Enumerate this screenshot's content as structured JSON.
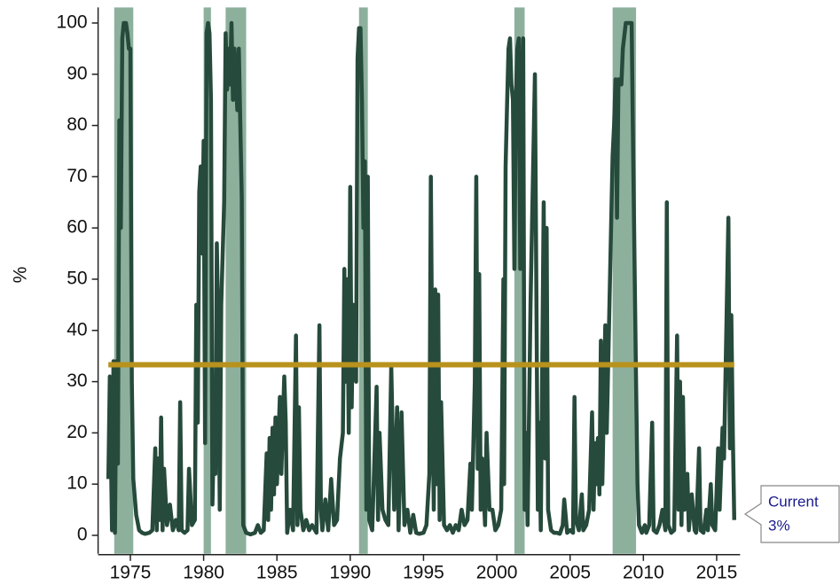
{
  "chart_data": {
    "type": "line",
    "y_label": "%",
    "x": [
      1973.5,
      1973.6,
      1973.75,
      1973.85,
      1973.95,
      1974.05,
      1974.15,
      1974.25,
      1974.35,
      1974.45,
      1974.55,
      1974.7,
      1974.8,
      1974.9,
      1975.0,
      1975.1,
      1975.2,
      1975.4,
      1975.6,
      1975.8,
      1976.0,
      1976.3,
      1976.5,
      1976.7,
      1976.8,
      1976.9,
      1977.0,
      1977.1,
      1977.2,
      1977.3,
      1977.5,
      1977.7,
      1977.9,
      1978.1,
      1978.3,
      1978.4,
      1978.5,
      1978.7,
      1978.9,
      1979.0,
      1979.2,
      1979.4,
      1979.5,
      1979.6,
      1979.7,
      1979.8,
      1979.9,
      1980.0,
      1980.1,
      1980.2,
      1980.3,
      1980.4,
      1980.5,
      1980.6,
      1980.7,
      1980.8,
      1980.9,
      1981.0,
      1981.1,
      1981.2,
      1981.4,
      1981.5,
      1981.6,
      1981.7,
      1981.8,
      1981.9,
      1982.0,
      1982.1,
      1982.3,
      1982.4,
      1982.6,
      1982.7,
      1982.9,
      1983.2,
      1983.5,
      1983.7,
      1983.9,
      1984.1,
      1984.3,
      1984.4,
      1984.5,
      1984.6,
      1984.7,
      1984.8,
      1984.9,
      1985.0,
      1985.2,
      1985.3,
      1985.5,
      1985.6,
      1985.7,
      1985.9,
      1986.1,
      1986.3,
      1986.4,
      1986.5,
      1986.6,
      1986.8,
      1987.0,
      1987.2,
      1987.4,
      1987.7,
      1987.9,
      1988.0,
      1988.1,
      1988.3,
      1988.5,
      1988.7,
      1988.9,
      1989.1,
      1989.3,
      1989.5,
      1989.6,
      1989.7,
      1989.8,
      1989.9,
      1990.0,
      1990.1,
      1990.2,
      1990.4,
      1990.5,
      1990.6,
      1990.7,
      1990.8,
      1990.9,
      1991.0,
      1991.1,
      1991.2,
      1991.3,
      1991.5,
      1991.6,
      1991.8,
      1991.9,
      1992.0,
      1992.2,
      1992.4,
      1992.6,
      1992.8,
      1993.0,
      1993.2,
      1993.3,
      1993.5,
      1993.7,
      1993.9,
      1994.1,
      1994.3,
      1994.5,
      1994.7,
      1995.0,
      1995.2,
      1995.4,
      1995.5,
      1995.6,
      1995.7,
      1995.8,
      1995.9,
      1996.0,
      1996.1,
      1996.2,
      1996.4,
      1996.6,
      1996.8,
      1997.0,
      1997.2,
      1997.4,
      1997.6,
      1997.8,
      1998.0,
      1998.2,
      1998.3,
      1998.5,
      1998.6,
      1998.7,
      1998.8,
      1998.9,
      1999.0,
      1999.2,
      1999.3,
      1999.5,
      1999.7,
      1999.9,
      2000.1,
      2000.3,
      2000.45,
      2000.5,
      2000.6,
      2000.7,
      2000.8,
      2000.9,
      2001.0,
      2001.1,
      2001.2,
      2001.3,
      2001.4,
      2001.5,
      2001.6,
      2001.7,
      2001.8,
      2001.9,
      2002.0,
      2002.1,
      2002.3,
      2002.6,
      2002.8,
      2002.9,
      2003.0,
      2003.2,
      2003.3,
      2003.4,
      2003.5,
      2003.7,
      2003.9,
      2004.1,
      2004.3,
      2004.5,
      2004.6,
      2004.8,
      2005.0,
      2005.2,
      2005.3,
      2005.4,
      2005.6,
      2005.8,
      2005.9,
      2006.1,
      2006.3,
      2006.5,
      2006.6,
      2006.7,
      2006.8,
      2006.9,
      2007.0,
      2007.1,
      2007.2,
      2007.4,
      2007.5,
      2007.9,
      2008.0,
      2008.1,
      2008.2,
      2008.3,
      2008.5,
      2008.6,
      2008.8,
      2009.0,
      2009.2,
      2009.3,
      2009.5,
      2009.6,
      2009.7,
      2009.9,
      2010.1,
      2010.2,
      2010.4,
      2010.6,
      2010.7,
      2010.9,
      2011.1,
      2011.3,
      2011.5,
      2011.6,
      2011.7,
      2011.9,
      2012.1,
      2012.3,
      2012.4,
      2012.5,
      2012.6,
      2012.7,
      2012.8,
      2013.0,
      2013.1,
      2013.3,
      2013.5,
      2013.6,
      2013.8,
      2013.9,
      2014.1,
      2014.3,
      2014.4,
      2014.6,
      2014.7,
      2014.9,
      2015.1,
      2015.2,
      2015.4,
      2015.5,
      2015.8,
      2015.9,
      2016.0,
      2016.1,
      2016.2
    ],
    "values": [
      11,
      31,
      1,
      34,
      0.5,
      34,
      14,
      81,
      60,
      97,
      100,
      100,
      98,
      95,
      95,
      30,
      11,
      4,
      1,
      0.5,
      0.3,
      0.5,
      1,
      17,
      1,
      15,
      3,
      23,
      1,
      13,
      2,
      6,
      1,
      3,
      1,
      26,
      1,
      0.5,
      1,
      13,
      2,
      3,
      45,
      22,
      67,
      72,
      55,
      77,
      18,
      98,
      100,
      98,
      85,
      6,
      20,
      12,
      57,
      40,
      5,
      45,
      65,
      98,
      87,
      95,
      88,
      100,
      85,
      95,
      83,
      95,
      66,
      2,
      0.5,
      0.2,
      0.5,
      2,
      0.5,
      1,
      16,
      3,
      19,
      5,
      21,
      8,
      23,
      10,
      27,
      12,
      31,
      22,
      0.5,
      5,
      1,
      39,
      2,
      25,
      5,
      1,
      3,
      1,
      2,
      0.5,
      41,
      5,
      1,
      7,
      1,
      11,
      2,
      3,
      15,
      20,
      52,
      30,
      50,
      20,
      68,
      25,
      45,
      30,
      93,
      99,
      99,
      85,
      60,
      73,
      5,
      70,
      3,
      1,
      10,
      29,
      3,
      20,
      5,
      3,
      2,
      33,
      5,
      25,
      1,
      24,
      2,
      5,
      0.5,
      4,
      0.5,
      0.3,
      0.5,
      2,
      12,
      70,
      30,
      5,
      48,
      10,
      47,
      3,
      26,
      2,
      1,
      2,
      0.5,
      2,
      1,
      5,
      2,
      3,
      14,
      5,
      30,
      70,
      13,
      51,
      5,
      15,
      2,
      20,
      5,
      5,
      1,
      2,
      5,
      50,
      10,
      72,
      84,
      95,
      97,
      88,
      85,
      52,
      85,
      95,
      97,
      52,
      85,
      97,
      5,
      20,
      2,
      45,
      90,
      5,
      22,
      1,
      65,
      15,
      60,
      5,
      1,
      0.5,
      0.5,
      0.3,
      2,
      7,
      0.5,
      1,
      0.5,
      27,
      3,
      1,
      8,
      1,
      2,
      5,
      24,
      5,
      18,
      10,
      19,
      8,
      38,
      10,
      41,
      20,
      74,
      80,
      89,
      62,
      89,
      88,
      95,
      100,
      100,
      100,
      75,
      30,
      10,
      2,
      0.5,
      2,
      0.5,
      2,
      22,
      1,
      0.5,
      2,
      5,
      1,
      65,
      2,
      0.5,
      1,
      39,
      5,
      30,
      2,
      27,
      5,
      12,
      1,
      8,
      1,
      0.5,
      17,
      1,
      0.5,
      5,
      1,
      10,
      2,
      1,
      17,
      5,
      21,
      15,
      62,
      17,
      43,
      20,
      3
    ],
    "color": "#264a3b",
    "shaded_periods": [
      [
        1973.9,
        1975.2
      ],
      [
        1980.0,
        1980.5
      ],
      [
        1981.5,
        1982.9
      ],
      [
        1990.6,
        1991.2
      ],
      [
        2001.2,
        2001.9
      ],
      [
        2007.9,
        2009.5
      ]
    ],
    "shade_color": "#8db09d",
    "reference_line": 33.3,
    "reference_color": "#b8921c",
    "xlim": [
      1972.8,
      2016.6
    ],
    "xticks": [
      1975,
      1980,
      1985,
      1990,
      1995,
      2000,
      2005,
      2010,
      2015
    ],
    "ylim": [
      -3.6,
      102
    ],
    "yticks": [
      0,
      10,
      20,
      30,
      40,
      50,
      60,
      70,
      80,
      90,
      100
    ],
    "annotation": [
      "Current",
      "3%"
    ]
  }
}
